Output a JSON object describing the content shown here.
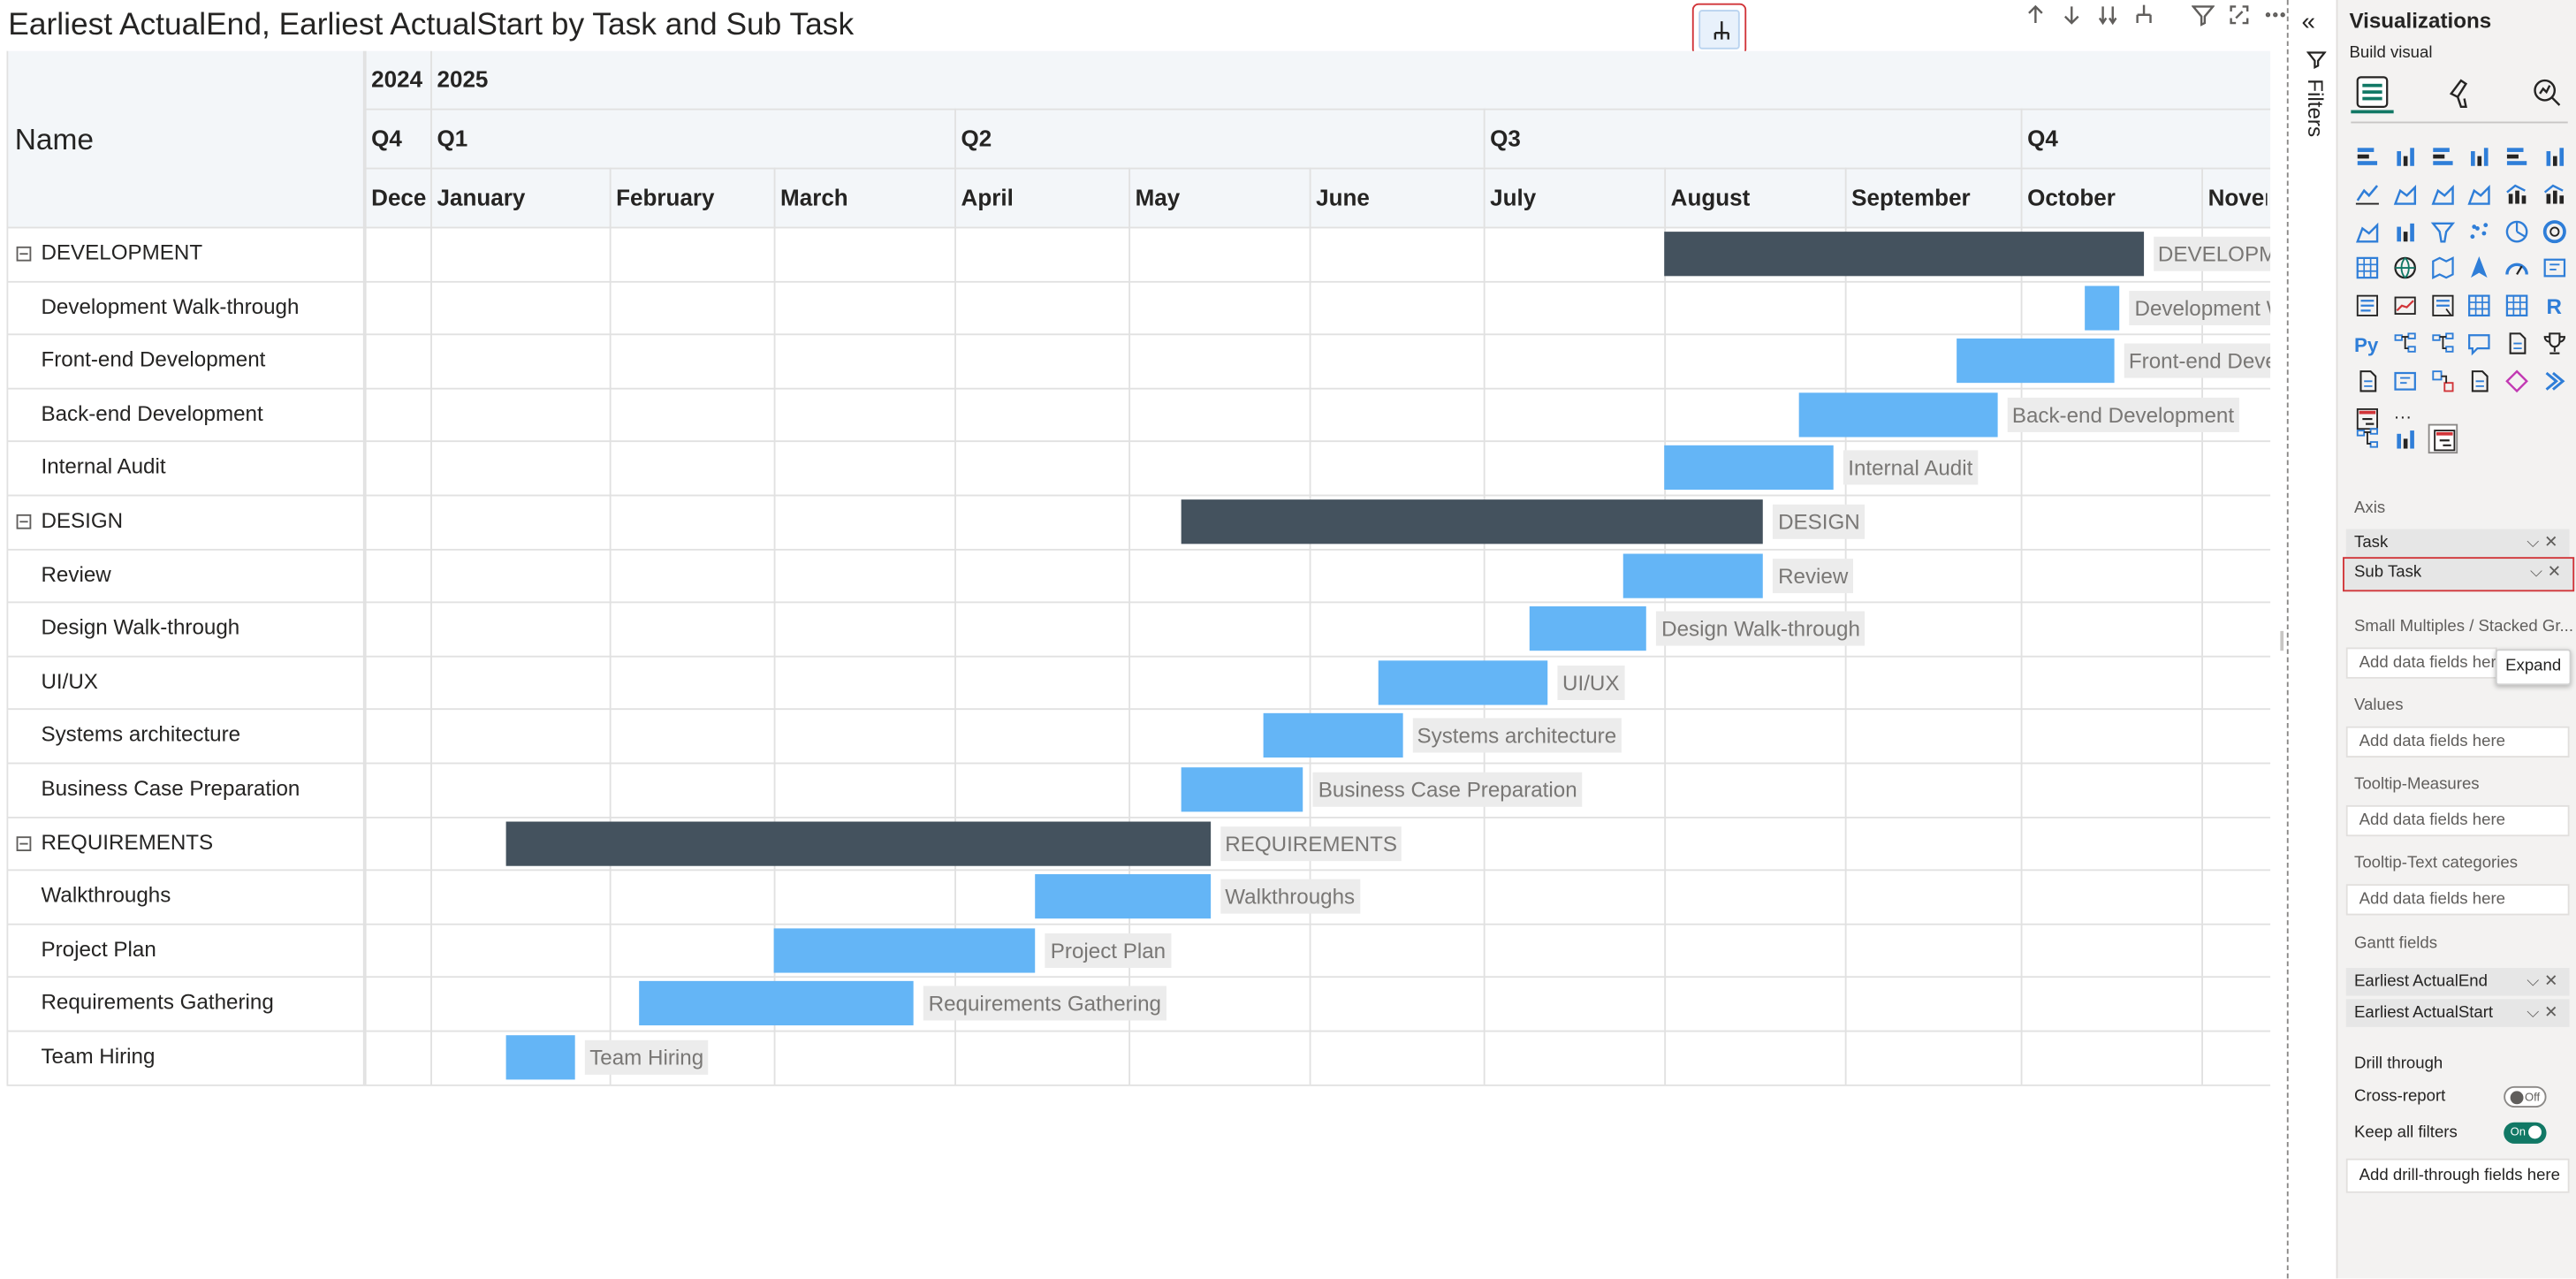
{
  "visual": {
    "title": "Earliest ActualEnd, Earliest ActualStart by Task and Sub Task",
    "name_header": "Name",
    "header_icons": [
      "arrow-up-icon",
      "arrow-down-icon",
      "double-arrow-down-icon",
      "expand-all-icon",
      "filter-icon",
      "focus-mode-icon",
      "more-options-icon"
    ],
    "expand_button_icon": "expand-hierarchy-icon"
  },
  "timeline": {
    "years": [
      {
        "label": "2024",
        "col": 0
      },
      {
        "label": "2025",
        "col": 1
      }
    ],
    "quarters": [
      {
        "label": "Q4",
        "col": 0
      },
      {
        "label": "Q1",
        "col": 1
      },
      {
        "label": "Q2",
        "col": 4
      },
      {
        "label": "Q3",
        "col": 7
      },
      {
        "label": "Q4",
        "col": 10
      }
    ],
    "months": [
      "December",
      "January",
      "February",
      "March",
      "April",
      "May",
      "June",
      "July",
      "August",
      "September",
      "October",
      "November"
    ]
  },
  "rows": [
    {
      "label": "DEVELOPMENT",
      "type": "task",
      "start": "2025-08-01",
      "end": "2025-10-22",
      "bar_label": "DEVELOPMENT"
    },
    {
      "label": "Development Walk-through",
      "type": "sub",
      "start": "2025-10-12",
      "end": "2025-10-18",
      "bar_label": "Development Walk-through"
    },
    {
      "label": "Front-end Development",
      "type": "sub",
      "start": "2025-09-20",
      "end": "2025-10-17",
      "bar_label": "Front-end Development"
    },
    {
      "label": "Back-end Development",
      "type": "sub",
      "start": "2025-08-24",
      "end": "2025-09-27",
      "bar_label": "Back-end Development"
    },
    {
      "label": "Internal Audit",
      "type": "sub",
      "start": "2025-08-01",
      "end": "2025-08-30",
      "bar_label": "Internal Audit"
    },
    {
      "label": "DESIGN",
      "type": "task",
      "start": "2025-05-10",
      "end": "2025-08-18",
      "bar_label": "DESIGN"
    },
    {
      "label": "Review",
      "type": "sub",
      "start": "2025-07-25",
      "end": "2025-08-18",
      "bar_label": "Review"
    },
    {
      "label": "Design Walk-through",
      "type": "sub",
      "start": "2025-07-09",
      "end": "2025-07-29",
      "bar_label": "Design Walk-through"
    },
    {
      "label": "UI/UX",
      "type": "sub",
      "start": "2025-06-13",
      "end": "2025-07-12",
      "bar_label": "UI/UX"
    },
    {
      "label": "Systems architecture",
      "type": "sub",
      "start": "2025-05-24",
      "end": "2025-06-17",
      "bar_label": "Systems architecture"
    },
    {
      "label": "Business Case Preparation",
      "type": "sub",
      "start": "2025-05-10",
      "end": "2025-05-31",
      "bar_label": "Business Case Preparation"
    },
    {
      "label": "REQUIREMENTS",
      "type": "task",
      "start": "2025-01-14",
      "end": "2025-05-15",
      "bar_label": "REQUIREMENTS"
    },
    {
      "label": "Walkthroughs",
      "type": "sub",
      "start": "2025-04-15",
      "end": "2025-05-15",
      "bar_label": "Walkthroughs"
    },
    {
      "label": "Project Plan",
      "type": "sub",
      "start": "2025-03-01",
      "end": "2025-04-15",
      "bar_label": "Project Plan"
    },
    {
      "label": "Requirements Gathering",
      "type": "sub",
      "start": "2025-02-06",
      "end": "2025-03-25",
      "bar_label": "Requirements Gathering"
    },
    {
      "label": "Team Hiring",
      "type": "sub",
      "start": "2025-01-14",
      "end": "2025-01-26",
      "bar_label": "Team Hiring"
    }
  ],
  "colors": {
    "task_bar": "#44525e",
    "sub_bar": "#64b5f6",
    "accent": "#117865",
    "highlight": "#d13438"
  },
  "filters": {
    "label": "Filters",
    "collapse_icon": "double-chevron-left-icon",
    "funnel_icon": "filter-icon"
  },
  "pane": {
    "title": "Visualizations",
    "subtitle": "Build visual",
    "tabs": [
      "build-visual-icon",
      "format-visual-icon",
      "analytics-icon"
    ],
    "sections": {
      "axis": "Axis",
      "axis_fields": [
        "Task",
        "Sub Task"
      ],
      "small_multiples": "Small Multiples / Stacked Gr...",
      "values": "Values",
      "tooltip_measures": "Tooltip-Measures",
      "tooltip_text": "Tooltip-Text categories",
      "gantt_fields": "Gantt fields",
      "gantt_field_items": [
        "Earliest ActualEnd",
        "Earliest ActualStart"
      ],
      "drill_through": "Drill through",
      "cross_report": "Cross-report",
      "keep_all_filters": "Keep all filters",
      "placeholder": "Add data fields here",
      "drill_placeholder": "Add drill-through fields here"
    },
    "toggles": {
      "cross_report": "Off",
      "keep_all_filters": "On"
    },
    "tooltip": "Expand",
    "more_visuals": "..."
  }
}
